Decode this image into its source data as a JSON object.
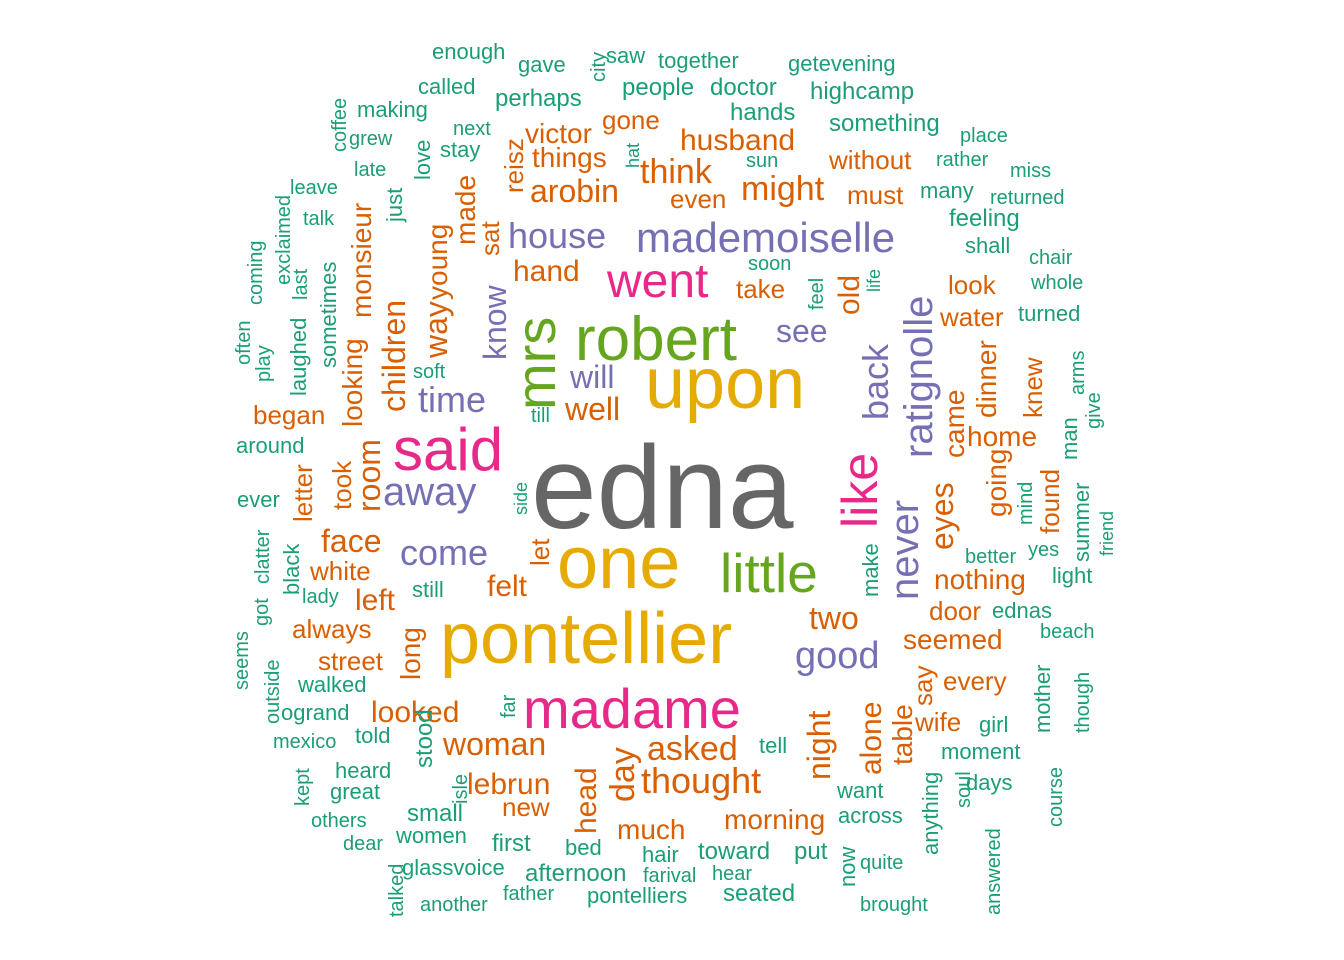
{
  "palette": {
    "dark_grey": "#666666",
    "gold": "#E6AB02",
    "green": "#66A61E",
    "magenta": "#E7298A",
    "purple": "#7570B3",
    "orange": "#D95F02",
    "teal": "#1B9E77"
  },
  "words": [
    {
      "text": "edna",
      "color": "dark_grey"
    },
    {
      "text": "one",
      "color": "gold"
    },
    {
      "text": "pontellier",
      "color": "gold"
    },
    {
      "text": "upon",
      "color": "gold"
    },
    {
      "text": "robert",
      "color": "green"
    },
    {
      "text": "little",
      "color": "green"
    },
    {
      "text": "mrs",
      "color": "green"
    },
    {
      "text": "said",
      "color": "magenta"
    },
    {
      "text": "madame",
      "color": "magenta"
    },
    {
      "text": "went",
      "color": "magenta"
    },
    {
      "text": "like",
      "color": "magenta"
    },
    {
      "text": "mademoiselle",
      "color": "purple"
    },
    {
      "text": "ratignolle",
      "color": "purple"
    },
    {
      "text": "never",
      "color": "purple"
    },
    {
      "text": "away",
      "color": "purple"
    },
    {
      "text": "back",
      "color": "purple"
    },
    {
      "text": "good",
      "color": "purple"
    },
    {
      "text": "come",
      "color": "purple"
    },
    {
      "text": "house",
      "color": "purple"
    },
    {
      "text": "time",
      "color": "purple"
    },
    {
      "text": "know",
      "color": "purple"
    },
    {
      "text": "see",
      "color": "purple"
    },
    {
      "text": "will",
      "color": "purple"
    },
    {
      "text": "thought",
      "color": "orange"
    },
    {
      "text": "night",
      "color": "orange"
    },
    {
      "text": "day",
      "color": "orange"
    },
    {
      "text": "asked",
      "color": "orange"
    },
    {
      "text": "woman",
      "color": "orange"
    },
    {
      "text": "think",
      "color": "orange"
    },
    {
      "text": "might",
      "color": "orange"
    },
    {
      "text": "arobin",
      "color": "orange"
    },
    {
      "text": "eyes",
      "color": "orange"
    },
    {
      "text": "face",
      "color": "orange"
    },
    {
      "text": "two",
      "color": "orange"
    },
    {
      "text": "well",
      "color": "orange"
    },
    {
      "text": "children",
      "color": "orange"
    },
    {
      "text": "way",
      "color": "orange"
    },
    {
      "text": "room",
      "color": "orange"
    },
    {
      "text": "looked",
      "color": "orange"
    },
    {
      "text": "husband",
      "color": "orange"
    },
    {
      "text": "alone",
      "color": "orange"
    },
    {
      "text": "hand",
      "color": "orange"
    },
    {
      "text": "old",
      "color": "orange"
    },
    {
      "text": "left",
      "color": "orange"
    },
    {
      "text": "felt",
      "color": "orange"
    },
    {
      "text": "head",
      "color": "orange"
    },
    {
      "text": "lebrun",
      "color": "orange"
    },
    {
      "text": "much",
      "color": "orange"
    },
    {
      "text": "morning",
      "color": "orange"
    },
    {
      "text": "seemed",
      "color": "orange"
    },
    {
      "text": "came",
      "color": "orange"
    },
    {
      "text": "dinner",
      "color": "orange"
    },
    {
      "text": "home",
      "color": "orange"
    },
    {
      "text": "nothing",
      "color": "orange"
    },
    {
      "text": "going",
      "color": "orange"
    },
    {
      "text": "things",
      "color": "orange"
    },
    {
      "text": "victor",
      "color": "orange"
    },
    {
      "text": "long",
      "color": "orange"
    },
    {
      "text": "table",
      "color": "orange"
    },
    {
      "text": "young",
      "color": "orange"
    },
    {
      "text": "made",
      "color": "orange"
    },
    {
      "text": "monsieur",
      "color": "orange"
    },
    {
      "text": "looking",
      "color": "orange"
    },
    {
      "text": "took",
      "color": "orange"
    },
    {
      "text": "white",
      "color": "orange"
    },
    {
      "text": "always",
      "color": "orange"
    },
    {
      "text": "street",
      "color": "orange"
    },
    {
      "text": "began",
      "color": "orange"
    },
    {
      "text": "letter",
      "color": "orange"
    },
    {
      "text": "let",
      "color": "orange"
    },
    {
      "text": "sat",
      "color": "orange"
    },
    {
      "text": "reisz",
      "color": "orange"
    },
    {
      "text": "gone",
      "color": "orange"
    },
    {
      "text": "without",
      "color": "orange"
    },
    {
      "text": "must",
      "color": "orange"
    },
    {
      "text": "even",
      "color": "orange"
    },
    {
      "text": "take",
      "color": "orange"
    },
    {
      "text": "look",
      "color": "orange"
    },
    {
      "text": "water",
      "color": "orange"
    },
    {
      "text": "knew",
      "color": "orange"
    },
    {
      "text": "found",
      "color": "orange"
    },
    {
      "text": "door",
      "color": "orange"
    },
    {
      "text": "every",
      "color": "orange"
    },
    {
      "text": "wife",
      "color": "orange"
    },
    {
      "text": "say",
      "color": "orange"
    },
    {
      "text": "new",
      "color": "orange"
    },
    {
      "text": "enough",
      "color": "teal"
    },
    {
      "text": "gave",
      "color": "teal"
    },
    {
      "text": "city",
      "color": "teal"
    },
    {
      "text": "saw",
      "color": "teal"
    },
    {
      "text": "together",
      "color": "teal"
    },
    {
      "text": "getevening",
      "color": "teal"
    },
    {
      "text": "called",
      "color": "teal"
    },
    {
      "text": "people",
      "color": "teal"
    },
    {
      "text": "doctor",
      "color": "teal"
    },
    {
      "text": "highcamp",
      "color": "teal"
    },
    {
      "text": "perhaps",
      "color": "teal"
    },
    {
      "text": "making",
      "color": "teal"
    },
    {
      "text": "hands",
      "color": "teal"
    },
    {
      "text": "coffee",
      "color": "teal"
    },
    {
      "text": "next",
      "color": "teal"
    },
    {
      "text": "something",
      "color": "teal"
    },
    {
      "text": "place",
      "color": "teal"
    },
    {
      "text": "grew",
      "color": "teal"
    },
    {
      "text": "stay",
      "color": "teal"
    },
    {
      "text": "hat",
      "color": "teal"
    },
    {
      "text": "sun",
      "color": "teal"
    },
    {
      "text": "rather",
      "color": "teal"
    },
    {
      "text": "late",
      "color": "teal"
    },
    {
      "text": "love",
      "color": "teal"
    },
    {
      "text": "miss",
      "color": "teal"
    },
    {
      "text": "leave",
      "color": "teal"
    },
    {
      "text": "just",
      "color": "teal"
    },
    {
      "text": "many",
      "color": "teal"
    },
    {
      "text": "returned",
      "color": "teal"
    },
    {
      "text": "exclaimed",
      "color": "teal"
    },
    {
      "text": "talk",
      "color": "teal"
    },
    {
      "text": "feeling",
      "color": "teal"
    },
    {
      "text": "shall",
      "color": "teal"
    },
    {
      "text": "coming",
      "color": "teal"
    },
    {
      "text": "last",
      "color": "teal"
    },
    {
      "text": "sometimes",
      "color": "teal"
    },
    {
      "text": "chair",
      "color": "teal"
    },
    {
      "text": "soon",
      "color": "teal"
    },
    {
      "text": "whole",
      "color": "teal"
    },
    {
      "text": "feel",
      "color": "teal"
    },
    {
      "text": "life",
      "color": "teal"
    },
    {
      "text": "often",
      "color": "teal"
    },
    {
      "text": "play",
      "color": "teal"
    },
    {
      "text": "laughed",
      "color": "teal"
    },
    {
      "text": "turned",
      "color": "teal"
    },
    {
      "text": "soft",
      "color": "teal"
    },
    {
      "text": "arms",
      "color": "teal"
    },
    {
      "text": "till",
      "color": "teal"
    },
    {
      "text": "man",
      "color": "teal"
    },
    {
      "text": "give",
      "color": "teal"
    },
    {
      "text": "around",
      "color": "teal"
    },
    {
      "text": "mind",
      "color": "teal"
    },
    {
      "text": "ever",
      "color": "teal"
    },
    {
      "text": "side",
      "color": "teal"
    },
    {
      "text": "summer",
      "color": "teal"
    },
    {
      "text": "friend",
      "color": "teal"
    },
    {
      "text": "black",
      "color": "teal"
    },
    {
      "text": "clatter",
      "color": "teal"
    },
    {
      "text": "make",
      "color": "teal"
    },
    {
      "text": "better",
      "color": "teal"
    },
    {
      "text": "yes",
      "color": "teal"
    },
    {
      "text": "got",
      "color": "teal"
    },
    {
      "text": "lady",
      "color": "teal"
    },
    {
      "text": "still",
      "color": "teal"
    },
    {
      "text": "light",
      "color": "teal"
    },
    {
      "text": "ednas",
      "color": "teal"
    },
    {
      "text": "seems",
      "color": "teal"
    },
    {
      "text": "beach",
      "color": "teal"
    },
    {
      "text": "outside",
      "color": "teal"
    },
    {
      "text": "walked",
      "color": "teal"
    },
    {
      "text": "mother",
      "color": "teal"
    },
    {
      "text": "though",
      "color": "teal"
    },
    {
      "text": "ogrand",
      "color": "teal"
    },
    {
      "text": "far",
      "color": "teal"
    },
    {
      "text": "mexico",
      "color": "teal"
    },
    {
      "text": "told",
      "color": "teal"
    },
    {
      "text": "stood",
      "color": "teal"
    },
    {
      "text": "tell",
      "color": "teal"
    },
    {
      "text": "girl",
      "color": "teal"
    },
    {
      "text": "moment",
      "color": "teal"
    },
    {
      "text": "heard",
      "color": "teal"
    },
    {
      "text": "anything",
      "color": "teal"
    },
    {
      "text": "soul",
      "color": "teal"
    },
    {
      "text": "kept",
      "color": "teal"
    },
    {
      "text": "great",
      "color": "teal"
    },
    {
      "text": "isle",
      "color": "teal"
    },
    {
      "text": "want",
      "color": "teal"
    },
    {
      "text": "days",
      "color": "teal"
    },
    {
      "text": "course",
      "color": "teal"
    },
    {
      "text": "small",
      "color": "teal"
    },
    {
      "text": "others",
      "color": "teal"
    },
    {
      "text": "across",
      "color": "teal"
    },
    {
      "text": "dear",
      "color": "teal"
    },
    {
      "text": "women",
      "color": "teal"
    },
    {
      "text": "first",
      "color": "teal"
    },
    {
      "text": "answered",
      "color": "teal"
    },
    {
      "text": "bed",
      "color": "teal"
    },
    {
      "text": "hair",
      "color": "teal"
    },
    {
      "text": "toward",
      "color": "teal"
    },
    {
      "text": "put",
      "color": "teal"
    },
    {
      "text": "now",
      "color": "teal"
    },
    {
      "text": "glassvoice",
      "color": "teal"
    },
    {
      "text": "afternoon",
      "color": "teal"
    },
    {
      "text": "quite",
      "color": "teal"
    },
    {
      "text": "talked",
      "color": "teal"
    },
    {
      "text": "farival",
      "color": "teal"
    },
    {
      "text": "hear",
      "color": "teal"
    },
    {
      "text": "father",
      "color": "teal"
    },
    {
      "text": "pontelliers",
      "color": "teal"
    },
    {
      "text": "seated",
      "color": "teal"
    },
    {
      "text": "another",
      "color": "teal"
    },
    {
      "text": "brought",
      "color": "teal"
    }
  ]
}
